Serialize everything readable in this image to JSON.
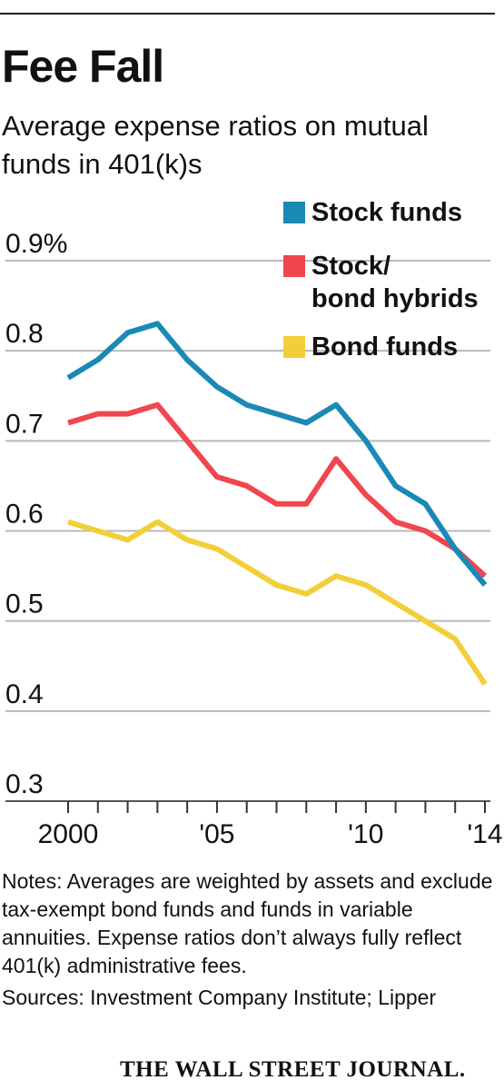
{
  "header": {
    "title": "Fee Fall",
    "subtitle": "Average expense ratios on mutual funds in 401(k)s"
  },
  "chart_data": {
    "type": "line",
    "x": [
      2000,
      2001,
      2002,
      2003,
      2004,
      2005,
      2006,
      2007,
      2008,
      2009,
      2010,
      2011,
      2012,
      2013,
      2014
    ],
    "x_tick_labels": [
      {
        "x": 2000,
        "label": "2000"
      },
      {
        "x": 2005,
        "label": "'05"
      },
      {
        "x": 2010,
        "label": "'10"
      },
      {
        "x": 2014,
        "label": "'14"
      }
    ],
    "y_tick_labels": [
      {
        "y": 0.9,
        "label": "0.9%"
      },
      {
        "y": 0.8,
        "label": "0.8"
      },
      {
        "y": 0.7,
        "label": "0.7"
      },
      {
        "y": 0.6,
        "label": "0.6"
      },
      {
        "y": 0.5,
        "label": "0.5"
      },
      {
        "y": 0.4,
        "label": "0.4"
      },
      {
        "y": 0.3,
        "label": "0.3"
      }
    ],
    "ylim": [
      0.3,
      0.9
    ],
    "grid": "horizontal",
    "legend_position": "top-right",
    "series": [
      {
        "name": "Stock funds",
        "color": "#1a8ab5",
        "values": [
          0.77,
          0.79,
          0.82,
          0.83,
          0.79,
          0.76,
          0.74,
          0.73,
          0.72,
          0.74,
          0.7,
          0.65,
          0.63,
          0.58,
          0.54
        ]
      },
      {
        "name": "Stock/ bond hybrids",
        "legend_lines": [
          "Stock/",
          "bond hybrids"
        ],
        "color": "#f0464f",
        "values": [
          0.72,
          0.73,
          0.73,
          0.74,
          0.7,
          0.66,
          0.65,
          0.63,
          0.63,
          0.68,
          0.64,
          0.61,
          0.6,
          0.58,
          0.55
        ]
      },
      {
        "name": "Bond funds",
        "color": "#f2cf3a",
        "values": [
          0.61,
          0.6,
          0.59,
          0.61,
          0.59,
          0.58,
          0.56,
          0.54,
          0.53,
          0.55,
          0.54,
          0.52,
          0.5,
          0.48,
          0.43
        ]
      }
    ]
  },
  "footer": {
    "notes": "Notes: Averages are weighted by assets and exclude tax-exempt bond funds and funds in variable annuities. Expense ratios don’t always fully reflect 401(k) administrative fees.",
    "sources": "Sources: Investment Company Institute; Lipper",
    "brand": "THE WALL STREET JOURNAL."
  }
}
